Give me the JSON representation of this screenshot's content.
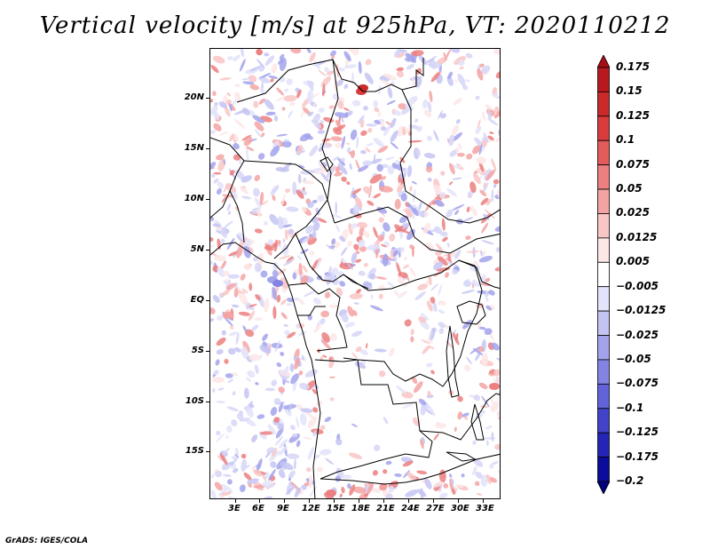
{
  "title": "Vertical velocity [m/s] at 925hPa, VT: 2020110212",
  "footer": "GrADS: IGES/COLA",
  "map": {
    "lat_labels": [
      "20N",
      "15N",
      "10N",
      "5N",
      "EQ",
      "5S",
      "10S",
      "15S"
    ],
    "lon_labels": [
      "3E",
      "6E",
      "9E",
      "12E",
      "15E",
      "18E",
      "21E",
      "24E",
      "27E",
      "30E",
      "33E"
    ]
  },
  "colorbar": {
    "levels": [
      "0.175",
      "0.15",
      "0.125",
      "0.1",
      "0.075",
      "0.05",
      "0.025",
      "0.0125",
      "0.005",
      "−0.005",
      "−0.0125",
      "−0.025",
      "−0.05",
      "−0.075",
      "−0.1",
      "−0.125",
      "−0.175",
      "−0.2"
    ],
    "colors": [
      "#a50f15",
      "#b8191f",
      "#cb2a2a",
      "#d93c3c",
      "#e35b5b",
      "#ec7f7f",
      "#f4a3a3",
      "#f9c6c6",
      "#fde6e6",
      "#ffffff",
      "#e3e3fb",
      "#c4c4f4",
      "#a3a3ec",
      "#8383e3",
      "#6262d9",
      "#4343c9",
      "#2424b5",
      "#0c0c9c",
      "#00007a"
    ]
  }
}
